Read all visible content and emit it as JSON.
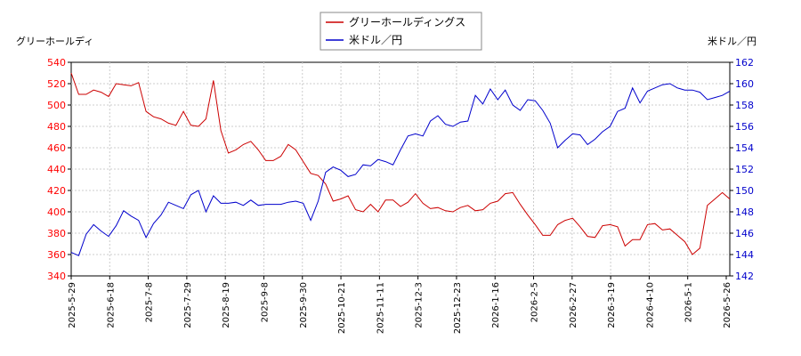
{
  "chart_data": {
    "type": "line",
    "left_axis_label": "グリーホールディ",
    "right_axis_label": "米ドル／円",
    "left_ylim": [
      340,
      540
    ],
    "right_ylim": [
      142,
      162
    ],
    "left_ticks": [
      "340",
      "360",
      "380",
      "400",
      "420",
      "440",
      "460",
      "480",
      "500",
      "520",
      "540"
    ],
    "right_ticks": [
      "142",
      "144",
      "146",
      "148",
      "150",
      "152",
      "154",
      "156",
      "158",
      "160",
      "162"
    ],
    "x_ticks": [
      "2025-5-29",
      "2025-6-18",
      "2025-7-8",
      "2025-7-29",
      "2025-8-19",
      "2025-9-8",
      "2025-9-30",
      "2025-10-21",
      "2025-11-11",
      "2025-12-3",
      "2025-12-23",
      "2026-1-16",
      "2026-2-5",
      "2026-2-27",
      "2026-3-19",
      "2026-4-10",
      "2026-5-1",
      "2026-5-26"
    ],
    "grid": true,
    "legend_position": "top-center",
    "series": [
      {
        "name": "グリーホールディングス",
        "axis": "left",
        "color": "#cc0000",
        "values": [
          530,
          510,
          510,
          514,
          512,
          508,
          520,
          519,
          518,
          521,
          494,
          489,
          487,
          483,
          481,
          494,
          481,
          480,
          487,
          523,
          476,
          455,
          458,
          463,
          466,
          458,
          448,
          448,
          452,
          463,
          458,
          447,
          436,
          434,
          426,
          410,
          412,
          415,
          402,
          400,
          407,
          400,
          411,
          411,
          405,
          409,
          417,
          408,
          403,
          404,
          401,
          400,
          404,
          406,
          401,
          402,
          408,
          410,
          417,
          418,
          407,
          397,
          388,
          378,
          378,
          388,
          392,
          394,
          386,
          377,
          376,
          387,
          388,
          386,
          368,
          374,
          374,
          388,
          389,
          383,
          384,
          378,
          372,
          360,
          366,
          406,
          412,
          418,
          412
        ]
      },
      {
        "name": "米ドル／円",
        "axis": "right",
        "color": "#0000cc",
        "values": [
          144.2,
          143.9,
          145.9,
          146.8,
          146.2,
          145.7,
          146.7,
          148.1,
          147.6,
          147.2,
          145.6,
          146.9,
          147.7,
          148.9,
          148.6,
          148.3,
          149.6,
          150.0,
          148.0,
          149.5,
          148.8,
          148.8,
          148.9,
          148.6,
          149.1,
          148.6,
          148.7,
          148.7,
          148.7,
          148.9,
          149.0,
          148.8,
          147.2,
          149.0,
          151.7,
          152.2,
          151.9,
          151.3,
          151.5,
          152.4,
          152.3,
          152.9,
          152.7,
          152.4,
          153.8,
          155.1,
          155.3,
          155.1,
          156.5,
          157.0,
          156.2,
          156.0,
          156.4,
          156.5,
          158.9,
          158.1,
          159.5,
          158.5,
          159.4,
          158.0,
          157.5,
          158.5,
          158.4,
          157.5,
          156.3,
          154.0,
          154.7,
          155.3,
          155.2,
          154.3,
          154.8,
          155.5,
          156.0,
          157.4,
          157.7,
          159.6,
          158.2,
          159.3,
          159.6,
          159.9,
          160.0,
          159.6,
          159.4,
          159.4,
          159.2,
          158.5,
          158.7,
          158.9,
          159.3
        ]
      }
    ]
  }
}
